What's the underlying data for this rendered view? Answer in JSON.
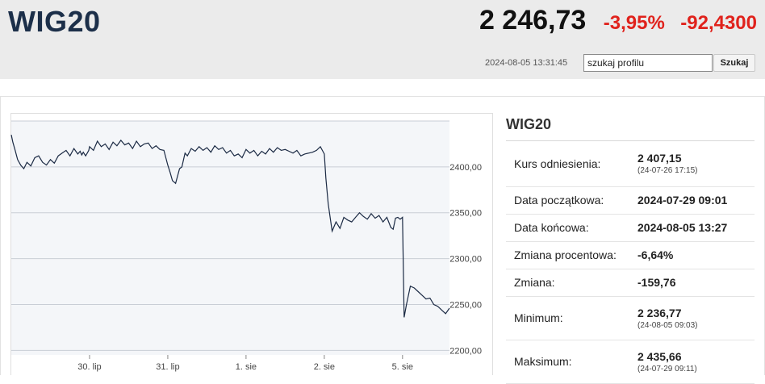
{
  "header": {
    "ticker": "WIG20",
    "price": "2 246,73",
    "change_pct": "-3,95%",
    "change_abs": "-92,4300",
    "timestamp": "2024-08-05 13:31:45"
  },
  "search": {
    "value": "szukaj profilu",
    "button_label": "Szukaj"
  },
  "info_panel": {
    "title": "WIG20",
    "rows": [
      {
        "label": "Kurs odniesienia:",
        "value": "2 407,15",
        "sub": "(24-07-26 17:15)"
      },
      {
        "label": "Data początkowa:",
        "value": "2024-07-29 09:01"
      },
      {
        "label": "Data końcowa:",
        "value": "2024-08-05 13:27"
      },
      {
        "label": "Zmiana procentowa:",
        "value": "-6,64%"
      },
      {
        "label": "Zmiana:",
        "value": "-159,76"
      },
      {
        "label": "Minimum:",
        "value": "2 236,77",
        "sub": "(24-08-05 09:03)"
      },
      {
        "label": "Maksimum:",
        "value": "2 435,66",
        "sub": "(24-07-29 09:11)"
      }
    ]
  },
  "colors": {
    "accent_negative": "#e0221c",
    "ticker": "#1c2f49",
    "line": "#1b2a44",
    "plot_bg": "#f4f6f9"
  },
  "chart_data": {
    "type": "line",
    "x_ticks": [
      "30. lip",
      "31. lip",
      "1. sie",
      "2. sie",
      "5. sie"
    ],
    "y_ticks": [
      "2400,00",
      "2350,00",
      "2300,00",
      "2250,00",
      "2200,00"
    ],
    "y_tick_values": [
      2400,
      2350,
      2300,
      2250,
      2200
    ],
    "ylim": [
      2195,
      2450
    ],
    "grid": true,
    "session_boundaries": [
      1,
      2,
      3,
      4,
      5
    ],
    "series": [
      {
        "x": [
          0.0,
          0.02,
          0.05,
          0.08,
          0.12,
          0.16,
          0.2,
          0.25,
          0.3,
          0.35,
          0.4,
          0.45,
          0.5,
          0.55,
          0.6,
          0.65,
          0.7,
          0.75,
          0.8,
          0.85,
          0.88,
          0.9,
          0.92,
          0.95,
          0.97,
          0.99,
          1.0,
          1.05,
          1.1,
          1.15,
          1.2,
          1.25,
          1.3,
          1.35,
          1.4,
          1.45,
          1.5,
          1.55,
          1.6,
          1.65,
          1.7,
          1.75,
          1.8,
          1.85,
          1.9,
          1.95,
          2.0,
          2.03,
          2.06,
          2.1,
          2.15,
          2.18,
          2.22,
          2.25,
          2.3,
          2.35,
          2.4,
          2.45,
          2.5,
          2.55,
          2.6,
          2.65,
          2.7,
          2.75,
          2.8,
          2.85,
          2.9,
          2.95,
          3.0,
          3.05,
          3.1,
          3.15,
          3.2,
          3.25,
          3.3,
          3.35,
          3.4,
          3.45,
          3.5,
          3.55,
          3.6,
          3.65,
          3.7,
          3.75,
          3.8,
          3.85,
          3.9,
          3.95,
          4.0,
          4.02,
          4.05,
          4.08,
          4.1,
          4.15,
          4.2,
          4.25,
          4.3,
          4.35,
          4.4,
          4.45,
          4.5,
          4.55,
          4.6,
          4.65,
          4.7,
          4.75,
          4.8,
          4.85,
          4.88,
          4.91,
          4.94,
          4.97,
          5.0,
          5.02,
          5.05,
          5.08,
          5.1,
          5.15,
          5.2,
          5.25,
          5.3,
          5.35,
          5.4,
          5.45,
          5.5,
          5.55,
          5.6
        ],
        "y": [
          2435,
          2427,
          2418,
          2408,
          2402,
          2398,
          2405,
          2401,
          2410,
          2412,
          2405,
          2402,
          2408,
          2404,
          2412,
          2415,
          2418,
          2412,
          2420,
          2414,
          2417,
          2413,
          2416,
          2412,
          2415,
          2418,
          2422,
          2418,
          2428,
          2422,
          2425,
          2419,
          2427,
          2423,
          2429,
          2424,
          2426,
          2420,
          2428,
          2422,
          2425,
          2426,
          2420,
          2423,
          2419,
          2418,
          2402,
          2394,
          2385,
          2382,
          2398,
          2400,
          2415,
          2412,
          2420,
          2417,
          2422,
          2418,
          2421,
          2416,
          2423,
          2419,
          2421,
          2415,
          2418,
          2412,
          2414,
          2410,
          2419,
          2415,
          2418,
          2412,
          2417,
          2414,
          2420,
          2416,
          2421,
          2418,
          2419,
          2417,
          2415,
          2418,
          2412,
          2414,
          2415,
          2416,
          2418,
          2422,
          2414,
          2388,
          2360,
          2342,
          2330,
          2340,
          2333,
          2345,
          2342,
          2340,
          2345,
          2350,
          2346,
          2343,
          2349,
          2344,
          2347,
          2340,
          2345,
          2334,
          2332,
          2344,
          2345,
          2343,
          2345,
          2236,
          2250,
          2262,
          2270,
          2268,
          2264,
          2260,
          2256,
          2257,
          2250,
          2248,
          2244,
          2240,
          2246
        ]
      }
    ]
  }
}
